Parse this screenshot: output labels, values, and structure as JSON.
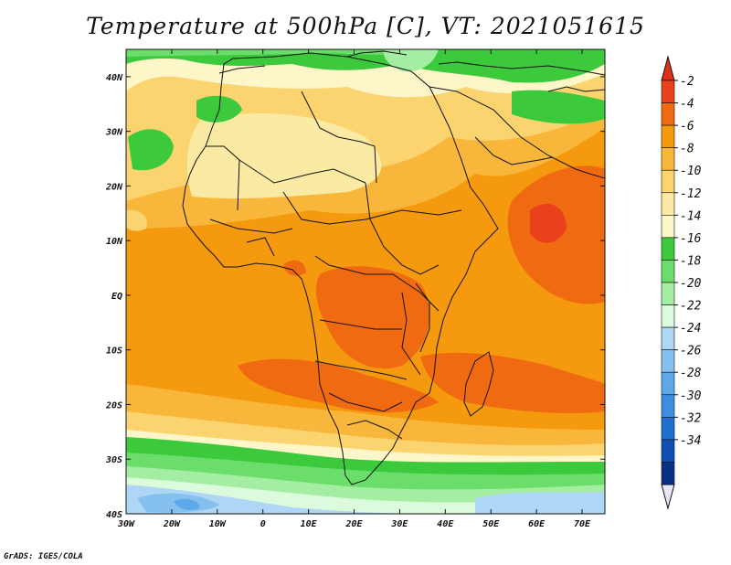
{
  "title": "Temperature at 500hPa [C], VT: 2021051615",
  "credit": "GrADS: IGES/COLA",
  "map": {
    "region": "Africa",
    "lon_range": [
      -30,
      75
    ],
    "lat_range": [
      -40,
      45
    ],
    "lon_ticks": [
      "30W",
      "20W",
      "10W",
      "0",
      "10E",
      "20E",
      "30E",
      "40E",
      "50E",
      "60E",
      "70E"
    ],
    "lat_ticks": [
      "40N",
      "30N",
      "20N",
      "10N",
      "EQ",
      "10S",
      "20S",
      "30S",
      "40S"
    ]
  },
  "colorbar": {
    "levels": [
      "-2",
      "-4",
      "-6",
      "-8",
      "-10",
      "-12",
      "-14",
      "-16",
      "-18",
      "-20",
      "-22",
      "-24",
      "-26",
      "-28",
      "-30",
      "-32",
      "-34"
    ],
    "colors": [
      "#e8411b",
      "#f06a12",
      "#f59a0f",
      "#f8b73a",
      "#fbd470",
      "#fbeaa3",
      "#fdf6c8",
      "#3cc93c",
      "#6bdd6b",
      "#a4eea4",
      "#dcfadc",
      "#aed6f5",
      "#86c0ef",
      "#5da8e8",
      "#3d8ee0",
      "#1f6fd2",
      "#0d4fb3",
      "#0a2f85"
    ],
    "over_color": "#e03017",
    "under_color": "#e8e6f6"
  }
}
